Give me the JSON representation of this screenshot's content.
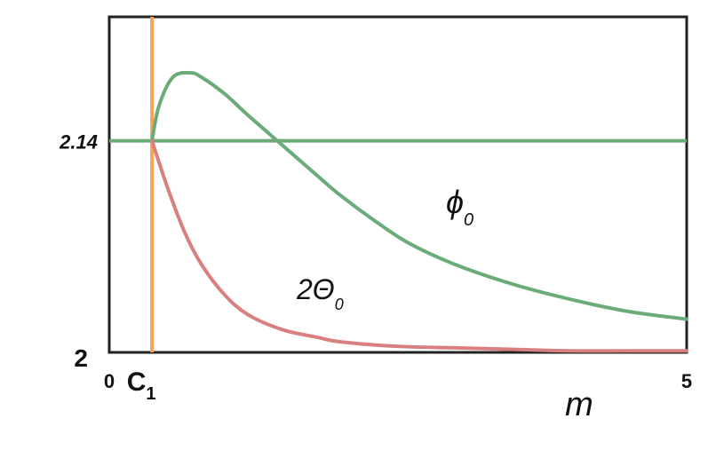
{
  "chart_data": {
    "type": "line",
    "xlabel": "m",
    "x_ticks": [
      {
        "value": 0,
        "label": "0"
      },
      {
        "value": 0.37,
        "label": "C",
        "subscript": "1"
      },
      {
        "value": 5,
        "label": "5"
      }
    ],
    "y_ticks": [
      {
        "value": 2,
        "label": "2"
      },
      {
        "value": 2.14,
        "label": "2.14"
      }
    ],
    "xlim": [
      0,
      5
    ],
    "ylim": [
      2,
      2.222
    ],
    "grid": false,
    "reference_lines": [
      {
        "orientation": "horizontal",
        "value": 2.14,
        "color": "#6aab78"
      },
      {
        "orientation": "vertical",
        "value": 0.37,
        "color": "#f4a55a"
      }
    ],
    "series": [
      {
        "name": "ϕ",
        "name_subscript": "0",
        "color": "#6aab78",
        "x": [
          0.37,
          0.43,
          0.55,
          0.7,
          0.8,
          1.0,
          1.2,
          1.5,
          1.8,
          2.0,
          2.3,
          2.6,
          3.0,
          3.5,
          4.0,
          4.5,
          5.0
        ],
        "y": [
          2.14,
          2.163,
          2.182,
          2.185,
          2.182,
          2.171,
          2.157,
          2.137,
          2.117,
          2.104,
          2.087,
          2.072,
          2.058,
          2.045,
          2.035,
          2.027,
          2.022
        ]
      },
      {
        "name": "2Θ",
        "name_subscript": "0",
        "color": "#d97f7f",
        "x": [
          0.37,
          0.5,
          0.65,
          0.8,
          1.0,
          1.2,
          1.5,
          1.8,
          2.0,
          2.5,
          3.0,
          3.5,
          4.0,
          4.5,
          5.0
        ],
        "y": [
          2.14,
          2.11,
          2.08,
          2.058,
          2.038,
          2.025,
          2.015,
          2.01,
          2.007,
          2.004,
          2.003,
          2.002,
          2.001,
          2.001,
          2.001
        ]
      }
    ]
  }
}
